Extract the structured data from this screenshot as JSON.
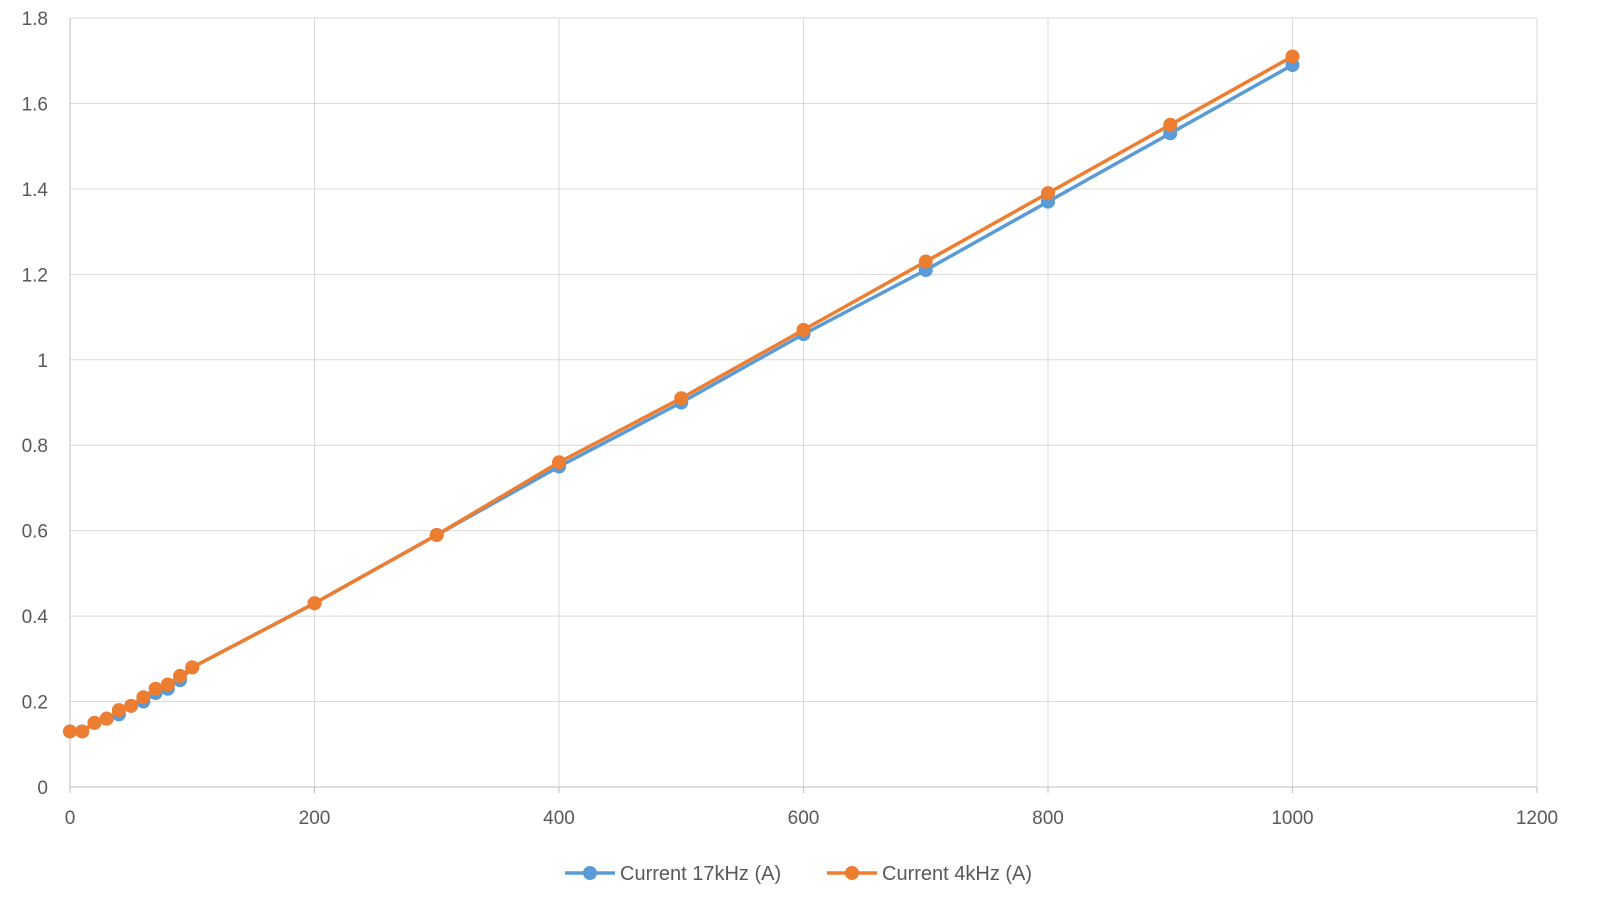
{
  "chart_data": {
    "type": "line",
    "title": "",
    "xlabel": "",
    "ylabel": "",
    "xlim": [
      0,
      1200
    ],
    "ylim": [
      0,
      1.8
    ],
    "x_ticks": [
      "0",
      "200",
      "400",
      "600",
      "800",
      "1000",
      "1200"
    ],
    "y_ticks": [
      "0",
      "0.2",
      "0.4",
      "0.6",
      "0.8",
      "1",
      "1.2",
      "1.4",
      "1.6",
      "1.8"
    ],
    "grid": true,
    "legend_position": "bottom",
    "series": [
      {
        "name": "Current 17kHz (A)",
        "color": "#5B9BD5",
        "x": [
          0,
          10,
          20,
          30,
          40,
          50,
          60,
          70,
          80,
          90,
          100,
          200,
          300,
          400,
          500,
          600,
          700,
          800,
          900,
          1000
        ],
        "values": [
          0.13,
          0.13,
          0.15,
          0.16,
          0.17,
          0.19,
          0.2,
          0.22,
          0.23,
          0.25,
          0.28,
          0.43,
          0.59,
          0.75,
          0.9,
          1.06,
          1.21,
          1.37,
          1.53,
          1.69
        ]
      },
      {
        "name": "Current 4kHz (A)",
        "color": "#ED7D31",
        "x": [
          0,
          10,
          20,
          30,
          40,
          50,
          60,
          70,
          80,
          90,
          100,
          200,
          300,
          400,
          500,
          600,
          700,
          800,
          900,
          1000
        ],
        "values": [
          0.13,
          0.13,
          0.15,
          0.16,
          0.18,
          0.19,
          0.21,
          0.23,
          0.24,
          0.26,
          0.28,
          0.43,
          0.59,
          0.76,
          0.91,
          1.07,
          1.23,
          1.39,
          1.55,
          1.71
        ]
      }
    ]
  }
}
